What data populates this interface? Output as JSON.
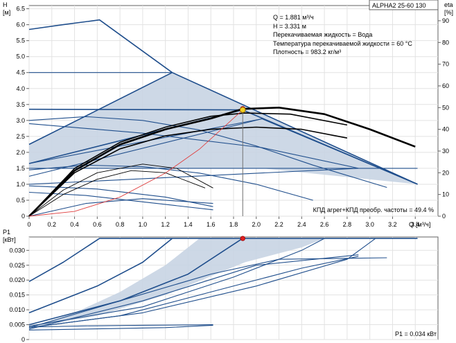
{
  "header": {
    "model": "ALPHA2 25-60 130"
  },
  "info_lines": [
    "Q = 1.881 м³/ч",
    "H = 3.331 м",
    "Перекачиваемая жидкость = Вода",
    "Температура перекачиваемой жидкости = 60 °C",
    "Плотность = 983.2 кг/м³"
  ],
  "efficiency_note": "КПД агрег+КПД преобр. частоты = 49.4 %",
  "power_note": "P1 = 0.034 кВт",
  "colors": {
    "curve": "#1f4e8c",
    "shade": "#c8d4e3",
    "duty_h": "#f0d020",
    "duty_eta": "#e02020",
    "system": "#e04040",
    "eta": "#000000"
  },
  "chart_data": [
    {
      "type": "line",
      "name": "head",
      "xlabel": "Q",
      "xunit": "[м³/ч]",
      "ylabel": "H",
      "yunit": "[м]",
      "y2label": "eta",
      "y2unit": "[%]",
      "xlim": [
        0,
        3.6
      ],
      "ylim": [
        0,
        6.6
      ],
      "y2lim": [
        0,
        97
      ],
      "x_ticks": [
        "0",
        "0.2",
        "0.4",
        "0.6",
        "0.8",
        "1.0",
        "1.2",
        "1.4",
        "1.6",
        "1.8",
        "2.0",
        "2.2",
        "2.4",
        "2.6",
        "2.8",
        "3.0",
        "3.2",
        "3.4"
      ],
      "y_ticks": [
        "0",
        "0.5",
        "1.0",
        "1.5",
        "2.0",
        "2.5",
        "3.0",
        "3.5",
        "4.0",
        "4.5",
        "5.0",
        "5.5",
        "6.0",
        "6.5"
      ],
      "y2_ticks": [
        "0",
        "10",
        "20",
        "30",
        "40",
        "50",
        "60",
        "70",
        "80",
        "90"
      ],
      "shaded_area": [
        [
          0,
          2.25
        ],
        [
          1.26,
          4.5
        ],
        [
          3.42,
          1.0
        ],
        [
          3.42,
          1.0
        ],
        [
          2.05,
          1.5
        ],
        [
          1.3,
          1.5
        ],
        [
          0,
          1.5
        ]
      ],
      "head_series": [
        {
          "points": [
            [
              0,
              5.85
            ],
            [
              0.3,
              6.0
            ],
            [
              0.62,
              6.15
            ],
            [
              1.26,
              4.5
            ],
            [
              3.42,
              1.0
            ]
          ]
        },
        {
          "points": [
            [
              0,
              4.5
            ],
            [
              1.26,
              4.5
            ]
          ]
        },
        {
          "points": [
            [
              0,
              2.25
            ],
            [
              1.26,
              4.5
            ]
          ]
        },
        {
          "points": [
            [
              0,
              3.35
            ],
            [
              1.88,
              3.33
            ],
            [
              3.42,
              1.0
            ]
          ]
        },
        {
          "points": [
            [
              0,
              1.65
            ],
            [
              1.88,
              3.33
            ]
          ]
        },
        {
          "points": [
            [
              0,
              3.0
            ],
            [
              0.5,
              3.12
            ],
            [
              1.0,
              3.0
            ],
            [
              1.5,
              2.7
            ],
            [
              2.0,
              2.2
            ],
            [
              2.5,
              1.6
            ],
            [
              3.15,
              0.9
            ]
          ]
        },
        {
          "points": [
            [
              0,
              2.9
            ],
            [
              1.0,
              2.6
            ],
            [
              2.05,
              2.15
            ],
            [
              2.9,
              1.5
            ]
          ]
        },
        {
          "points": [
            [
              0,
              1.65
            ],
            [
              2.05,
              3.05
            ]
          ]
        },
        {
          "points": [
            [
              0,
              1.5
            ],
            [
              3.42,
              1.5
            ]
          ]
        },
        {
          "points": [
            [
              0,
              1.25
            ],
            [
              2.05,
              3.05
            ],
            [
              3.42,
              1.0
            ]
          ]
        },
        {
          "points": [
            [
              0,
              1.45
            ],
            [
              0.5,
              1.6
            ],
            [
              1.0,
              1.55
            ],
            [
              1.5,
              1.35
            ],
            [
              2.0,
              1.0
            ],
            [
              2.5,
              0.5
            ]
          ]
        },
        {
          "points": [
            [
              0,
              1.0
            ],
            [
              2.9,
              1.5
            ]
          ]
        },
        {
          "points": [
            [
              0,
              0.95
            ],
            [
              0.6,
              0.85
            ],
            [
              1.2,
              0.6
            ],
            [
              1.62,
              0.3
            ]
          ]
        },
        {
          "points": [
            [
              0,
              0.75
            ],
            [
              0.5,
              0.65
            ],
            [
              1.0,
              0.45
            ],
            [
              1.62,
              0.2
            ]
          ]
        },
        {
          "points": [
            [
              0,
              0.0
            ],
            [
              0.5,
              0.4
            ],
            [
              1.0,
              0.55
            ],
            [
              1.62,
              0.4
            ]
          ]
        }
      ],
      "eta_series": [
        {
          "points": [
            [
              0,
              0
            ],
            [
              0.4,
              21
            ],
            [
              0.8,
              33
            ],
            [
              1.2,
              40
            ],
            [
              1.6,
              45
            ],
            [
              1.88,
              49.4
            ],
            [
              2.2,
              50
            ],
            [
              2.6,
              47
            ],
            [
              3.0,
              40
            ],
            [
              3.4,
              32
            ]
          ]
        },
        {
          "points": [
            [
              0,
              0
            ],
            [
              0.4,
              22
            ],
            [
              0.8,
              34
            ],
            [
              1.2,
              41
            ],
            [
              1.6,
              46
            ],
            [
              1.9,
              47.5
            ],
            [
              2.3,
              47
            ],
            [
              2.8,
              42
            ]
          ]
        },
        {
          "points": [
            [
              0,
              0
            ],
            [
              0.4,
              20
            ],
            [
              0.8,
              31
            ],
            [
              1.2,
              37
            ],
            [
              1.6,
              40
            ],
            [
              2.0,
              41
            ],
            [
              2.4,
              40
            ],
            [
              2.8,
              36
            ]
          ]
        },
        {
          "points": [
            [
              0,
              0
            ],
            [
              0.3,
              12
            ],
            [
              0.6,
              20
            ],
            [
              1.0,
              24
            ],
            [
              1.3,
              22
            ],
            [
              1.62,
              13
            ]
          ]
        },
        {
          "points": [
            [
              0,
              0
            ],
            [
              0.3,
              10
            ],
            [
              0.6,
              17
            ],
            [
              0.9,
              21
            ],
            [
              1.2,
              20
            ],
            [
              1.55,
              13
            ]
          ]
        }
      ],
      "system_curve": [
        [
          0,
          0
        ],
        [
          0.4,
          0.15
        ],
        [
          0.8,
          0.6
        ],
        [
          1.2,
          1.35
        ],
        [
          1.5,
          2.1
        ],
        [
          1.881,
          3.331
        ]
      ],
      "duty_point": {
        "Q": 1.881,
        "H": 3.331,
        "eta": 49.4
      }
    },
    {
      "type": "line",
      "name": "power",
      "ylabel": "P1",
      "yunit": "[кВт]",
      "xlim": [
        0,
        3.6
      ],
      "ylim": [
        0,
        0.0345
      ],
      "y_ticks": [
        "0",
        "0.005",
        "0.010",
        "0.015",
        "0.020",
        "0.025",
        "0.030"
      ],
      "shaded_area": [
        [
          0,
          0.0035
        ],
        [
          0.4,
          0.009
        ],
        [
          0.8,
          0.016
        ],
        [
          1.2,
          0.025
        ],
        [
          1.5,
          0.034
        ],
        [
          2.6,
          0.034
        ],
        [
          2.4,
          0.031
        ],
        [
          1.9,
          0.026
        ],
        [
          1.2,
          0.015
        ],
        [
          0.6,
          0.008
        ],
        [
          0,
          0.004
        ]
      ],
      "power_series": [
        {
          "points": [
            [
              0,
              0.0195
            ],
            [
              0.3,
              0.026
            ],
            [
              0.62,
              0.034
            ],
            [
              3.42,
              0.034
            ]
          ]
        },
        {
          "points": [
            [
              0,
              0.009
            ],
            [
              0.6,
              0.018
            ],
            [
              1.0,
              0.026
            ],
            [
              1.26,
              0.034
            ]
          ]
        },
        {
          "points": [
            [
              0,
              0.005
            ],
            [
              0.8,
              0.013
            ],
            [
              1.4,
              0.022
            ],
            [
              1.88,
              0.034
            ]
          ]
        },
        {
          "points": [
            [
              0,
              0.0045
            ],
            [
              1.0,
              0.011
            ],
            [
              1.8,
              0.021
            ],
            [
              2.4,
              0.03
            ],
            [
              2.6,
              0.034
            ]
          ]
        },
        {
          "points": [
            [
              0,
              0.004
            ],
            [
              1.0,
              0.009
            ],
            [
              2.0,
              0.018
            ],
            [
              2.8,
              0.027
            ],
            [
              3.05,
              0.034
            ]
          ]
        },
        {
          "points": [
            [
              0,
              0.004
            ],
            [
              0.8,
              0.013
            ],
            [
              1.6,
              0.022
            ],
            [
              2.2,
              0.027
            ],
            [
              3.15,
              0.0275
            ]
          ]
        },
        {
          "points": [
            [
              0,
              0.0035
            ],
            [
              1.0,
              0.013
            ],
            [
              2.0,
              0.025
            ],
            [
              2.9,
              0.0285
            ]
          ]
        },
        {
          "points": [
            [
              0,
              0.004
            ],
            [
              0.8,
              0.008
            ],
            [
              1.6,
              0.016
            ],
            [
              2.4,
              0.024
            ],
            [
              2.9,
              0.028
            ]
          ]
        },
        {
          "points": [
            [
              0,
              0.0042
            ],
            [
              0.5,
              0.0046
            ],
            [
              1.0,
              0.0048
            ],
            [
              1.62,
              0.005
            ]
          ]
        },
        {
          "points": [
            [
              0,
              0.0032
            ],
            [
              0.6,
              0.0036
            ],
            [
              1.2,
              0.004
            ],
            [
              1.62,
              0.0048
            ]
          ]
        }
      ],
      "duty_point": {
        "Q": 1.881,
        "P1": 0.034
      }
    }
  ]
}
